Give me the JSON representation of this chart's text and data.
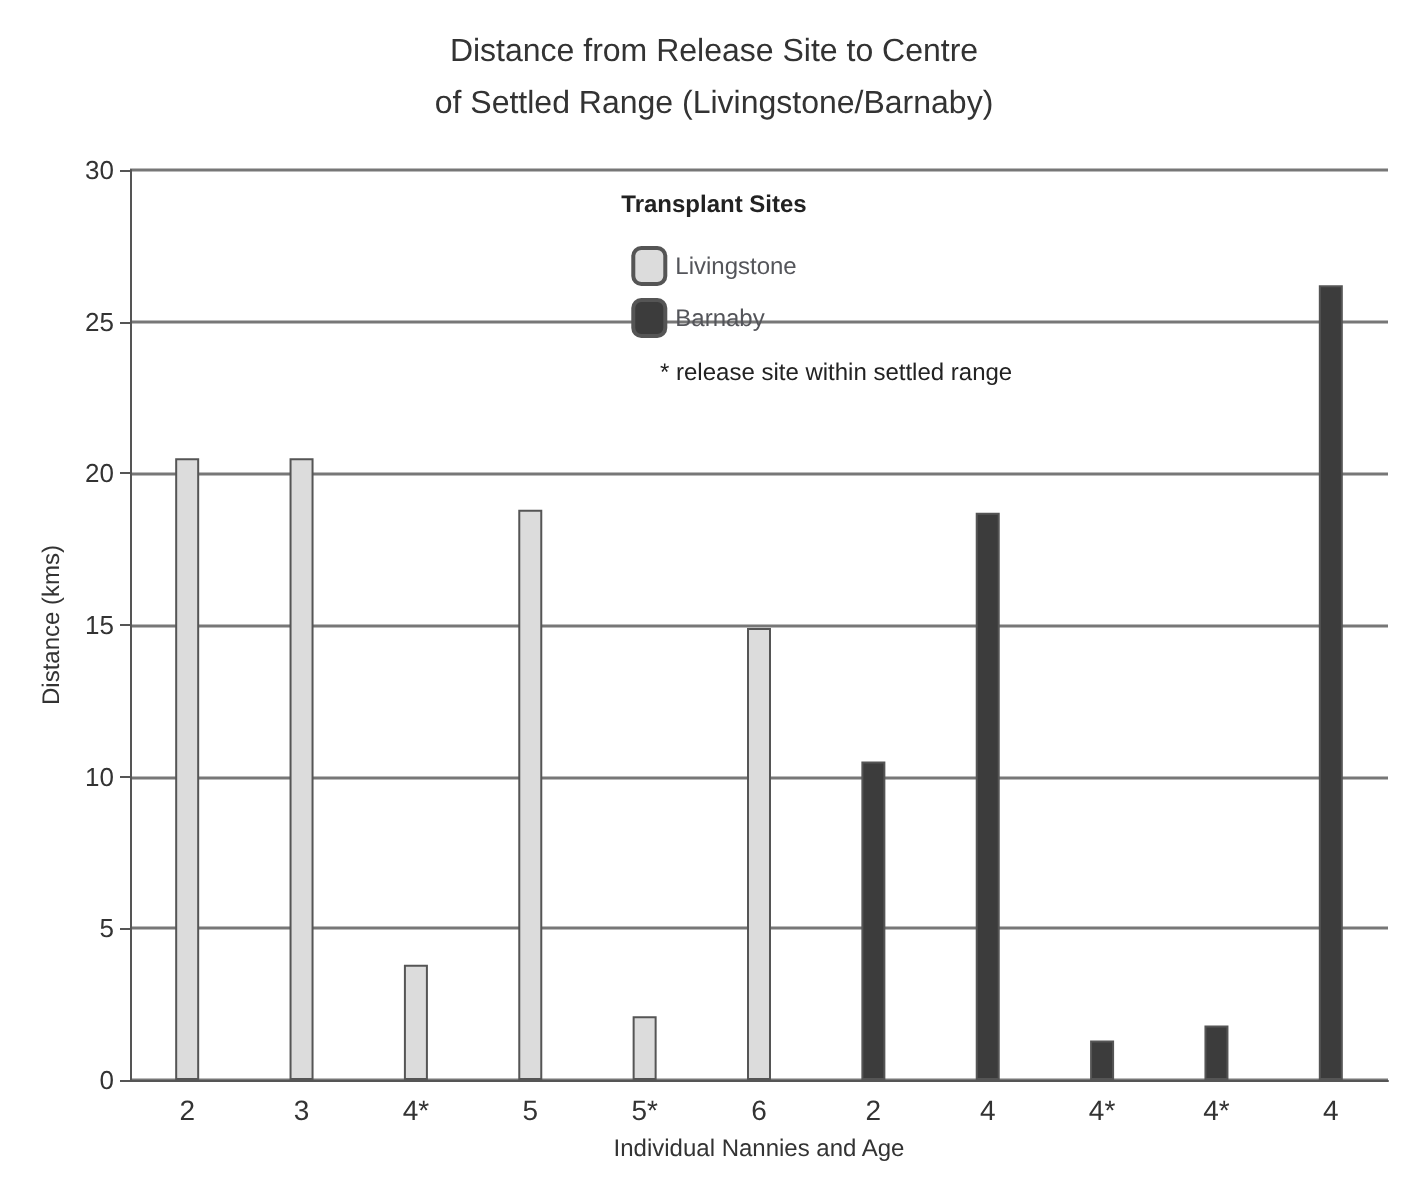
{
  "chart_data": {
    "type": "bar",
    "title": "Distance from Release Site to Centre\nof Settled Range (Livingstone/Barnaby)",
    "xlabel": "Individual Nannies and Age",
    "ylabel": "Distance (kms)",
    "legend_title": "Transplant Sites",
    "annotations": [
      "* release site within settled range"
    ],
    "categories": [
      "2",
      "3",
      "4*",
      "5",
      "5*",
      "6",
      "2",
      "4",
      "4*",
      "4*",
      "4"
    ],
    "series": [
      {
        "name": "Livingstone",
        "color": "#dcdcdc",
        "values": [
          20.5,
          20.5,
          3.8,
          18.8,
          2.1,
          14.9,
          null,
          null,
          null,
          null,
          null
        ]
      },
      {
        "name": "Barnaby",
        "color": "#3c3c3c",
        "values": [
          null,
          null,
          null,
          null,
          null,
          null,
          10.5,
          18.7,
          1.3,
          1.8,
          26.2
        ]
      }
    ],
    "ylim": [
      0,
      30
    ],
    "yticks": [
      0,
      5,
      10,
      15,
      20,
      25,
      30
    ],
    "grid": "y",
    "legend": "top"
  }
}
